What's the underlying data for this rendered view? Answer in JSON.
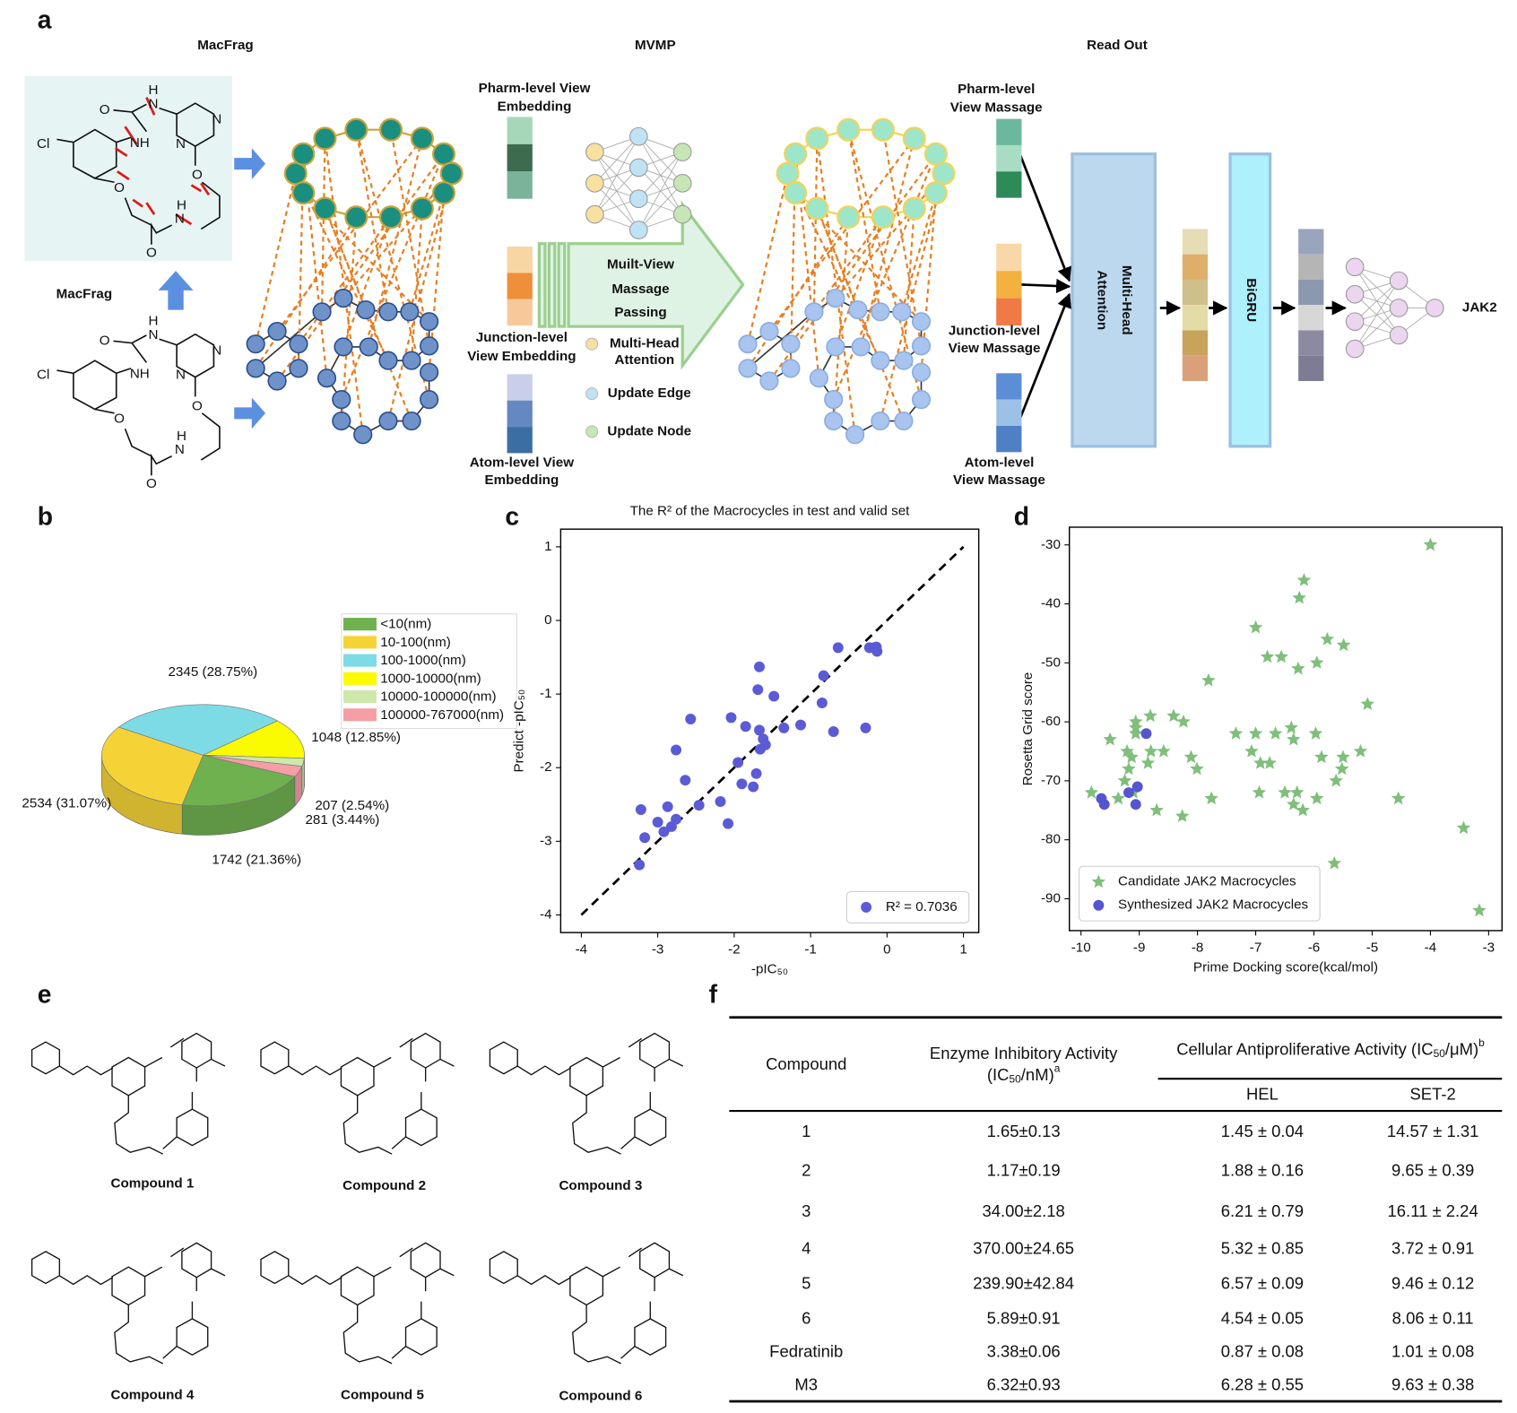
{
  "panel_labels": [
    "a",
    "b",
    "c",
    "d",
    "e",
    "f"
  ],
  "panel_a": {
    "titles": [
      "MacFrag",
      "MVMP",
      "Read Out"
    ],
    "macfrag_label": "MacFrag",
    "atoms": [
      "NH",
      "O",
      "H",
      "N",
      "N",
      "N",
      "O",
      "H",
      "N",
      "O",
      "O",
      "Cl"
    ],
    "embeddings": [
      [
        "Pharm-level View",
        "Embedding"
      ],
      [
        "Junction-level",
        "View Embedding"
      ],
      [
        "Atom-level View",
        "Embedding"
      ]
    ],
    "passing": [
      "Muilt-View",
      "Massage",
      "Passing"
    ],
    "legend": [
      [
        "Multi-Head",
        "Attention"
      ],
      [
        "Update Edge"
      ],
      [
        "Update Node"
      ]
    ],
    "messages": [
      [
        "Pharm-level",
        "View Massage"
      ],
      [
        "Junction-level",
        "View Massage"
      ],
      [
        "Atom-level",
        "View Massage"
      ]
    ],
    "attention": [
      "Multi-Head",
      "Attention"
    ],
    "bigru": "BiGRU",
    "output": "JAK2"
  },
  "chart_data": [
    {
      "type": "pie",
      "categories": [
        "<10(nm)",
        "10-100(nm)",
        "100-1000(nm)",
        "1000-10000(nm)",
        "10000-100000(nm)",
        "100000-767000(nm)"
      ],
      "values": [
        1742,
        2534,
        2345,
        1048,
        207,
        281
      ],
      "value_labels": [
        "1742 (21.36%)",
        "2534 (31.07%)",
        "2345 (28.75%)",
        "1048 (12.85%)",
        "207 (2.54%)",
        "281 (3.44%)"
      ],
      "colors": [
        "#6fb04f",
        "#f5d336",
        "#7ddbe6",
        "#fafa00",
        "#cde8a9",
        "#f59ea6"
      ],
      "legend": "upper right"
    },
    {
      "type": "scatter",
      "title": "The R² of the Macrocycles in test and valid set",
      "x_label": "-pIC₅₀",
      "y_label": "Predict -pIC₅₀",
      "xlim": [
        -4.27,
        1.2
      ],
      "ylim": [
        -4.24,
        1.24
      ],
      "xticks": [
        -4,
        -3,
        -2,
        -1,
        0,
        1
      ],
      "yticks": [
        1,
        0,
        -1,
        -2,
        -3,
        -4
      ],
      "reference_line": {
        "x": [
          -4,
          1
        ],
        "y": [
          -4,
          1
        ]
      },
      "legend": "lower right",
      "series": [
        {
          "name": "R² = 0.7036",
          "color": "#5b5bd6",
          "marker": "circle",
          "x": [
            -3.24,
            -3.17,
            -3.22,
            -3.0,
            -2.87,
            -2.92,
            -2.82,
            -2.76,
            -2.64,
            -2.46,
            -2.76,
            -2.57,
            -2.18,
            -2.08,
            -1.95,
            -1.9,
            -2.04,
            -1.85,
            -1.75,
            -1.71,
            -1.67,
            -1.66,
            -1.62,
            -1.59,
            -1.67,
            -1.69,
            -1.48,
            -1.35,
            -1.13,
            -0.85,
            -0.83,
            -0.7,
            -0.64,
            -0.28,
            -0.23,
            -0.17,
            -0.13,
            -0.14
          ],
          "values": [
            -3.32,
            -2.95,
            -2.57,
            -2.74,
            -2.53,
            -2.87,
            -2.8,
            -2.7,
            -2.17,
            -2.51,
            -1.76,
            -1.34,
            -2.46,
            -2.76,
            -1.93,
            -2.22,
            -1.32,
            -1.44,
            -2.26,
            -2.08,
            -1.49,
            -1.75,
            -1.61,
            -1.69,
            -0.63,
            -0.94,
            -1.03,
            -1.46,
            -1.42,
            -1.12,
            -0.75,
            -1.51,
            -0.37,
            -1.46,
            -0.37,
            -0.37,
            -0.42,
            -0.36
          ]
        }
      ]
    },
    {
      "type": "scatter",
      "x_label": "Prime Docking score(kcal/mol)",
      "y_label": "Rosetta Grid score",
      "xlim": [
        -10.2,
        -2.77
      ],
      "ylim": [
        -95.4,
        -27.0
      ],
      "xticks": [
        -10,
        -9,
        -8,
        -7,
        -6,
        -5,
        -4,
        -3
      ],
      "yticks": [
        -30,
        -40,
        -50,
        -60,
        -70,
        -80,
        -90
      ],
      "legend": "lower left",
      "series": [
        {
          "name": "Candidate JAK2 Macrocycles",
          "color": "#7fbf7b",
          "marker": "star",
          "x": [
            -4.0,
            -6.17,
            -6.25,
            -7.0,
            -5.77,
            -5.49,
            -6.8,
            -6.56,
            -6.27,
            -5.95,
            -7.81,
            -5.08,
            -9.5,
            -9.06,
            -9.06,
            -9.06,
            -8.81,
            -8.41,
            -8.24,
            -7.34,
            -7.0,
            -6.66,
            -6.39,
            -6.35,
            -5.97,
            -8.8,
            -8.58,
            -9.21,
            -9.13,
            -8.11,
            -7.07,
            -6.92,
            -6.76,
            -5.87,
            -5.5,
            -5.2,
            -8.85,
            -9.18,
            -8.01,
            -5.52,
            -5.62,
            -9.25,
            -9.36,
            -9.82,
            -9.1,
            -6.94,
            -6.5,
            -6.29,
            -6.35,
            -5.95,
            -6.19,
            -7.76,
            -8.7,
            -8.26,
            -4.55,
            -3.43,
            -5.65,
            -3.16
          ],
          "values": [
            -30,
            -36,
            -39,
            -44,
            -46,
            -47,
            -49,
            -49,
            -51,
            -50,
            -53,
            -57,
            -63,
            -60,
            -61,
            -62,
            -59,
            -59,
            -60,
            -62,
            -62,
            -62,
            -61,
            -63,
            -62,
            -65,
            -65,
            -65,
            -66,
            -66,
            -65,
            -67,
            -67,
            -66,
            -66,
            -65,
            -67,
            -68,
            -68,
            -68,
            -70,
            -70,
            -73,
            -72,
            -72,
            -72,
            -72,
            -72,
            -74,
            -73,
            -75,
            -73,
            -75,
            -76,
            -73,
            -78,
            -84,
            -92
          ]
        },
        {
          "name": "Synthesized JAK2 Macrocycles",
          "color": "#5555d0",
          "marker": "circle",
          "x": [
            -8.88,
            -9.03,
            -9.18,
            -9.65,
            -9.6,
            -9.06
          ],
          "values": [
            -62,
            -71,
            -72,
            -73,
            -74,
            -74
          ]
        }
      ]
    }
  ],
  "panel_e": {
    "compounds": [
      "Compound 1",
      "Compound 2",
      "Compound 3",
      "Compound 4",
      "Compound 5",
      "Compound 6"
    ]
  },
  "table": {
    "headers": {
      "compound": "Compound",
      "enzyme": "Enzyme Inhibitory Activity",
      "enzyme_unit": [
        "(IC",
        "50",
        "/nM)",
        "a"
      ],
      "cellular": [
        "Cellular Antiproliferative Activity (IC",
        "50",
        "/μM)",
        "b"
      ],
      "hel": "HEL",
      "set2": "SET-2"
    },
    "rows": [
      [
        "1",
        "1.65±0.13",
        "1.45 ± 0.04",
        "14.57 ± 1.31"
      ],
      [
        "2",
        "1.17±0.19",
        "1.88 ± 0.16",
        "9.65 ± 0.39"
      ],
      [
        "3",
        "34.00±2.18",
        "6.21 ± 0.79",
        "16.11 ± 2.24"
      ],
      [
        "4",
        "370.00±24.65",
        "5.32 ± 0.85",
        "3.72 ± 0.91"
      ],
      [
        "5",
        "239.90±42.84",
        "6.57 ± 0.09",
        "9.46 ± 0.12"
      ],
      [
        "6",
        "5.89±0.91",
        "4.54 ± 0.05",
        "8.06 ± 0.11"
      ],
      [
        "Fedratinib",
        "3.38±0.06",
        "0.87 ± 0.08",
        "1.01 ± 0.08"
      ],
      [
        "M3",
        "6.32±0.93",
        "6.28 ± 0.55",
        "9.63 ± 0.38"
      ]
    ]
  }
}
